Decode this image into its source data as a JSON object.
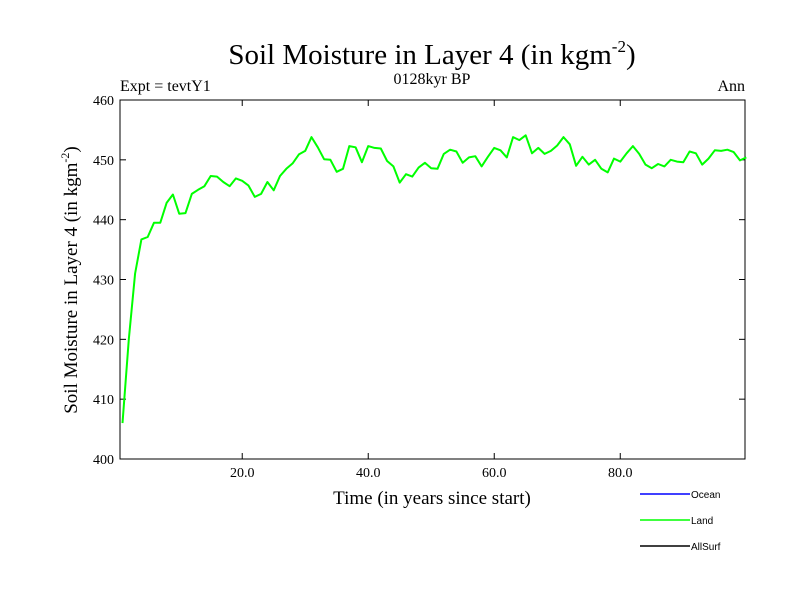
{
  "chart_data": {
    "type": "line",
    "title": "Soil Moisture in Layer 4 (in kgm",
    "title_superscript": "-2",
    "title_suffix": ")",
    "subtitle_left": "Expt = tevtY1",
    "subtitle_center": "0128kyr BP",
    "subtitle_right": "Ann",
    "xlabel": "Time (in years since start)",
    "ylabel": "Soil Moisture in Layer 4 (in kgm",
    "ylabel_superscript": "-2",
    "ylabel_suffix": ")",
    "xlim": [
      0.6,
      99.8
    ],
    "ylim": [
      400,
      460
    ],
    "x_ticks": [
      20,
      40,
      60,
      80
    ],
    "x_tick_labels": [
      "20.0",
      "40.0",
      "60.0",
      "80.0"
    ],
    "y_ticks": [
      400,
      410,
      420,
      430,
      440,
      450,
      460
    ],
    "y_tick_labels": [
      "400",
      "410",
      "420",
      "430",
      "440",
      "450",
      "460"
    ],
    "series": [
      {
        "name": "Land",
        "color": "#00ff00",
        "x": [
          1,
          2,
          3,
          4,
          5,
          6,
          7,
          8,
          9,
          10,
          11,
          12,
          13,
          14,
          15,
          16,
          17,
          18,
          19,
          20,
          21,
          22,
          23,
          24,
          25,
          26,
          27,
          28,
          29,
          30,
          31,
          32,
          33,
          34,
          35,
          36,
          37,
          38,
          39,
          40,
          41,
          42,
          43,
          44,
          45,
          46,
          47,
          48,
          49,
          50,
          51,
          52,
          53,
          54,
          55,
          56,
          57,
          58,
          59,
          60,
          61,
          62,
          63,
          64,
          65,
          66,
          67,
          68,
          69,
          70,
          71,
          72,
          73,
          74,
          75,
          76,
          77,
          78,
          79,
          80,
          81,
          82,
          83,
          84,
          85,
          86,
          87,
          88,
          89,
          90,
          91,
          92,
          93,
          94,
          95,
          96,
          97,
          98,
          99,
          100
        ],
        "values": [
          406,
          420,
          431,
          436.7,
          437.1,
          439.5,
          439.5,
          442.8,
          444.2,
          441,
          441.1,
          444.3,
          445,
          445.6,
          447.3,
          447.2,
          446.3,
          445.6,
          446.9,
          446.5,
          445.7,
          443.8,
          444.3,
          446.3,
          444.9,
          447.3,
          448.5,
          449.4,
          450.9,
          451.5,
          453.8,
          452.1,
          450.1,
          450,
          448,
          448.5,
          452.3,
          452.1,
          449.6,
          452.3,
          452,
          451.9,
          449.8,
          448.9,
          446.2,
          447.6,
          447.2,
          448.7,
          449.5,
          448.6,
          448.5,
          451,
          451.7,
          451.4,
          449.5,
          450.4,
          450.6,
          448.9,
          450.5,
          452,
          451.6,
          450.4,
          453.8,
          453.3,
          454.1,
          451.1,
          452,
          451,
          451.5,
          452.4,
          453.8,
          452.6,
          449,
          450.5,
          449.2,
          450,
          448.5,
          447.9,
          450.2,
          449.7,
          451.1,
          452.3,
          451,
          449.2,
          448.6,
          449.3,
          448.9,
          450,
          449.7,
          449.6,
          451.4,
          451.1,
          449.2,
          450.2,
          451.6,
          451.5,
          451.7,
          451.3,
          449.9,
          450.4
        ]
      }
    ],
    "legend_position": "bottom-right",
    "legend": [
      {
        "name": "Ocean",
        "color": "#0000ff"
      },
      {
        "name": "Land",
        "color": "#00ff00"
      },
      {
        "name": "AllSurf",
        "color": "#000000"
      }
    ]
  }
}
